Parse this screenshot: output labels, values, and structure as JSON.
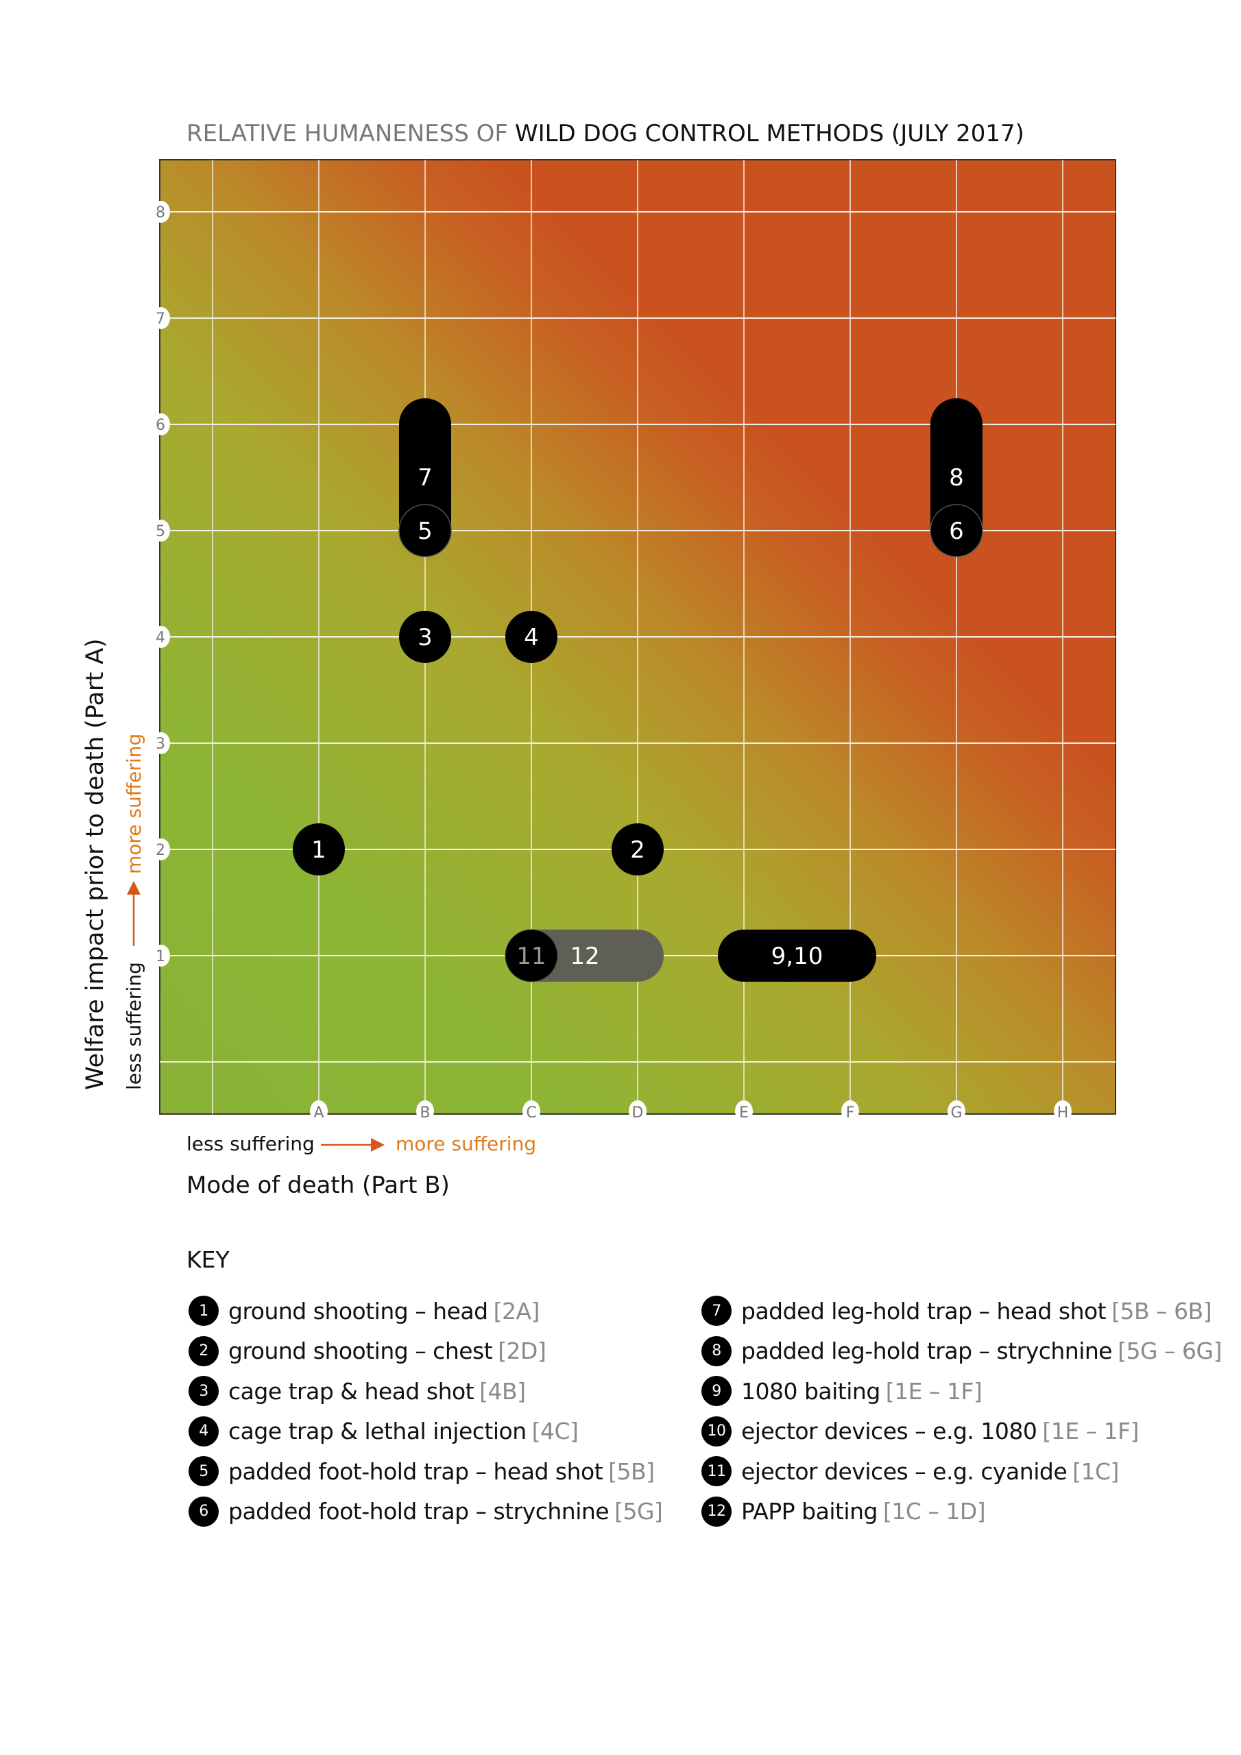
{
  "chart_data": {
    "type": "scatter",
    "title_prefix": "RELATIVE HUMANENESS OF",
    "title_main": "WILD DOG CONTROL METHODS (JULY 2017)",
    "xlabel": "Mode of death (Part B)",
    "ylabel": "Welfare impact prior to death (Part A)",
    "x_direction": {
      "low": "less suffering",
      "high": "more suffering"
    },
    "y_direction": {
      "low": "less suffering",
      "high": "more suffering"
    },
    "x_categories": [
      "A",
      "B",
      "C",
      "D",
      "E",
      "F",
      "G",
      "H"
    ],
    "y_ticks": [
      1,
      2,
      3,
      4,
      5,
      6,
      7,
      8
    ],
    "grid": true,
    "colors": {
      "low": "#8cb535",
      "mid": "#b5922b",
      "high": "#c9521f",
      "marker": "#000000",
      "marker_gray": "#5f5f55",
      "accent": "#e07b1a"
    },
    "markers": [
      {
        "label": "1",
        "x": [
          "A"
        ],
        "y": [
          2
        ]
      },
      {
        "label": "2",
        "x": [
          "D"
        ],
        "y": [
          2
        ]
      },
      {
        "label": "3",
        "x": [
          "B"
        ],
        "y": [
          4
        ]
      },
      {
        "label": "4",
        "x": [
          "C"
        ],
        "y": [
          4
        ]
      },
      {
        "label": "7",
        "x": [
          "B"
        ],
        "y": [
          5,
          6
        ],
        "caption_label": "5"
      },
      {
        "label": "8",
        "x": [
          "G"
        ],
        "y": [
          5,
          6
        ],
        "caption_label": "6"
      },
      {
        "label": "12",
        "x": [
          "C",
          "D"
        ],
        "y": [
          1
        ],
        "gray": true,
        "caption_label": "11"
      },
      {
        "label": "9,10",
        "x": [
          "E",
          "F"
        ],
        "y": [
          1
        ]
      }
    ]
  },
  "key": {
    "title": "KEY",
    "items": [
      {
        "num": "1",
        "text": "ground shooting – head",
        "ref": "[2A]"
      },
      {
        "num": "2",
        "text": "ground shooting – chest",
        "ref": "[2D]"
      },
      {
        "num": "3",
        "text": "cage trap & head shot",
        "ref": "[4B]"
      },
      {
        "num": "4",
        "text": "cage trap & lethal injection",
        "ref": "[4C]"
      },
      {
        "num": "5",
        "text": "padded foot-hold trap – head shot",
        "ref": "[5B]"
      },
      {
        "num": "6",
        "text": "padded foot-hold trap – strychnine",
        "ref": "[5G]"
      },
      {
        "num": "7",
        "text": "padded leg-hold trap – head shot",
        "ref": "[5B – 6B]"
      },
      {
        "num": "8",
        "text": "padded leg-hold trap – strychnine",
        "ref": "[5G – 6G]"
      },
      {
        "num": "9",
        "text": "1080 baiting",
        "ref": "[1E – 1F]"
      },
      {
        "num": "10",
        "text": "ejector devices – e.g. 1080",
        "ref": "[1E – 1F]"
      },
      {
        "num": "11",
        "text": "ejector devices – e.g. cyanide",
        "ref": "[1C]"
      },
      {
        "num": "12",
        "text": "PAPP baiting",
        "ref": "[1C – 1D]"
      }
    ]
  }
}
